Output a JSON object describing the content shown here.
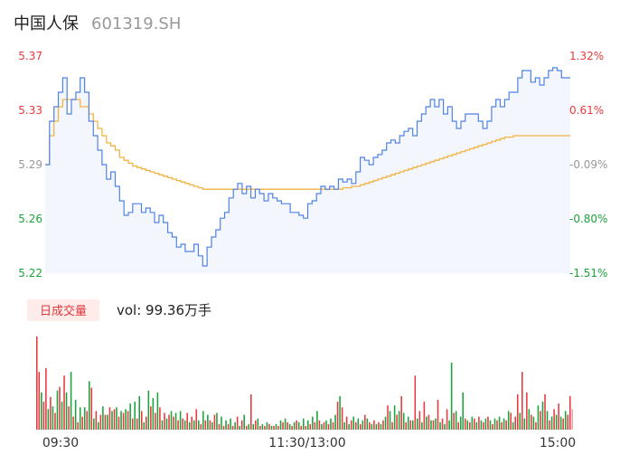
{
  "header": {
    "stock_name": "中国人保",
    "stock_code": "601319.SH"
  },
  "colors": {
    "up": "#e8383d",
    "down": "#1aa33a",
    "flat": "#999999",
    "price_line": "#4e82e6",
    "avg_line": "#f2b443",
    "area_fill": "#f3f6fc",
    "badge_bg": "#fdecea"
  },
  "volume": {
    "badge_label": "日成交量",
    "summary": "vol: 99.36万手"
  },
  "chart_data": {
    "type": "line",
    "title": "",
    "xlabel": "",
    "ylabel": "",
    "y_ticks_left": [
      "5.37",
      "5.33",
      "5.29",
      "5.26",
      "5.22"
    ],
    "y_ticks_right": [
      "1.32%",
      "0.61%",
      "-0.09%",
      "-0.80%",
      "-1.51%"
    ],
    "ylim": [
      5.22,
      5.37
    ],
    "prev_close": 5.295,
    "x_labels": [
      "09:30",
      "11:30/13:00",
      "15:00"
    ],
    "series": [
      {
        "name": "",
        "values": [
          5.295,
          5.325,
          5.335,
          5.345,
          5.355,
          5.33,
          5.34,
          5.345,
          5.355,
          5.345,
          5.325,
          5.315,
          5.305,
          5.295,
          5.285,
          5.29,
          5.28,
          5.27,
          5.26,
          5.262,
          5.268,
          5.268,
          5.262,
          5.265,
          5.262,
          5.255,
          5.26,
          5.255,
          5.248,
          5.245,
          5.238,
          5.24,
          5.235,
          5.235,
          5.24,
          5.232,
          5.225,
          5.238,
          5.245,
          5.25,
          5.258,
          5.262,
          5.272,
          5.278,
          5.282,
          5.275,
          5.28,
          5.272,
          5.278,
          5.275,
          5.27,
          5.275,
          5.272,
          5.27,
          5.268,
          5.268,
          5.262,
          5.262,
          5.26,
          5.258,
          5.268,
          5.27,
          5.275,
          5.28,
          5.278,
          5.28,
          5.278,
          5.285,
          5.283,
          5.285,
          5.282,
          5.29,
          5.3,
          5.298,
          5.295,
          5.3,
          5.302,
          5.305,
          5.31,
          5.312,
          5.31,
          5.315,
          5.318,
          5.32,
          5.315,
          5.325,
          5.33,
          5.335,
          5.34,
          5.335,
          5.34,
          5.33,
          5.335,
          5.325,
          5.32,
          5.325,
          5.33,
          5.33,
          5.33,
          5.325,
          5.32,
          5.325,
          5.335,
          5.34,
          5.335,
          5.34,
          5.345,
          5.345,
          5.355,
          5.36,
          5.36,
          5.352,
          5.355,
          5.35,
          5.355,
          5.36,
          5.362,
          5.36,
          5.355,
          5.355
        ]
      },
      {
        "name": "",
        "values": [
          5.295,
          5.315,
          5.325,
          5.335,
          5.34,
          5.34,
          5.34,
          5.34,
          5.335,
          5.335,
          5.33,
          5.325,
          5.32,
          5.315,
          5.31,
          5.308,
          5.305,
          5.3,
          5.298,
          5.296,
          5.294,
          5.293,
          5.292,
          5.291,
          5.29,
          5.289,
          5.288,
          5.287,
          5.286,
          5.285,
          5.284,
          5.283,
          5.282,
          5.281,
          5.28,
          5.279,
          5.278,
          5.278,
          5.278,
          5.278,
          5.278,
          5.278,
          5.278,
          5.278,
          5.278,
          5.278,
          5.278,
          5.278,
          5.278,
          5.278,
          5.278,
          5.278,
          5.278,
          5.278,
          5.278,
          5.278,
          5.278,
          5.278,
          5.278,
          5.278,
          5.278,
          5.278,
          5.278,
          5.278,
          5.278,
          5.278,
          5.278,
          5.278,
          5.279,
          5.279,
          5.28,
          5.28,
          5.281,
          5.282,
          5.283,
          5.284,
          5.285,
          5.286,
          5.287,
          5.288,
          5.289,
          5.29,
          5.291,
          5.292,
          5.293,
          5.294,
          5.295,
          5.296,
          5.297,
          5.298,
          5.299,
          5.3,
          5.301,
          5.302,
          5.303,
          5.304,
          5.305,
          5.306,
          5.307,
          5.308,
          5.309,
          5.31,
          5.311,
          5.312,
          5.313,
          5.314,
          5.314,
          5.315,
          5.315,
          5.315,
          5.315,
          5.315,
          5.315,
          5.315,
          5.315,
          5.315,
          5.315,
          5.315,
          5.315,
          5.315
        ]
      }
    ],
    "volume_bars": [
      {
        "v": 100,
        "c": "up"
      },
      {
        "v": 62,
        "c": "up"
      },
      {
        "v": 40,
        "c": "down"
      },
      {
        "v": 30,
        "c": "up"
      },
      {
        "v": 66,
        "c": "up"
      },
      {
        "v": 22,
        "c": "down"
      },
      {
        "v": 35,
        "c": "up"
      },
      {
        "v": 25,
        "c": "down"
      },
      {
        "v": 18,
        "c": "up"
      },
      {
        "v": 42,
        "c": "down"
      },
      {
        "v": 46,
        "c": "up"
      },
      {
        "v": 30,
        "c": "down"
      },
      {
        "v": 58,
        "c": "up"
      },
      {
        "v": 40,
        "c": "down"
      },
      {
        "v": 25,
        "c": "up"
      },
      {
        "v": 62,
        "c": "down"
      },
      {
        "v": 14,
        "c": "up"
      },
      {
        "v": 32,
        "c": "down"
      },
      {
        "v": 8,
        "c": "up"
      },
      {
        "v": 24,
        "c": "down"
      },
      {
        "v": 14,
        "c": "up"
      },
      {
        "v": 24,
        "c": "down"
      },
      {
        "v": 20,
        "c": "up"
      },
      {
        "v": 52,
        "c": "down"
      },
      {
        "v": 45,
        "c": "up"
      },
      {
        "v": 12,
        "c": "down"
      },
      {
        "v": 20,
        "c": "up"
      },
      {
        "v": 8,
        "c": "down"
      },
      {
        "v": 16,
        "c": "up"
      },
      {
        "v": 25,
        "c": "down"
      },
      {
        "v": 16,
        "c": "up"
      },
      {
        "v": 16,
        "c": "down"
      },
      {
        "v": 24,
        "c": "up"
      },
      {
        "v": 20,
        "c": "down"
      },
      {
        "v": 22,
        "c": "up"
      },
      {
        "v": 24,
        "c": "down"
      },
      {
        "v": 14,
        "c": "up"
      },
      {
        "v": 20,
        "c": "down"
      },
      {
        "v": 18,
        "c": "up"
      },
      {
        "v": 22,
        "c": "down"
      },
      {
        "v": 20,
        "c": "up"
      },
      {
        "v": 28,
        "c": "down"
      },
      {
        "v": 12,
        "c": "up"
      },
      {
        "v": 30,
        "c": "down"
      },
      {
        "v": 12,
        "c": "up"
      },
      {
        "v": 36,
        "c": "down"
      },
      {
        "v": 20,
        "c": "up"
      },
      {
        "v": 8,
        "c": "down"
      },
      {
        "v": 14,
        "c": "up"
      },
      {
        "v": 42,
        "c": "down"
      },
      {
        "v": 25,
        "c": "up"
      },
      {
        "v": 34,
        "c": "down"
      },
      {
        "v": 18,
        "c": "up"
      },
      {
        "v": 40,
        "c": "down"
      },
      {
        "v": 24,
        "c": "up"
      },
      {
        "v": 10,
        "c": "down"
      },
      {
        "v": 18,
        "c": "up"
      },
      {
        "v": 12,
        "c": "down"
      },
      {
        "v": 16,
        "c": "up"
      },
      {
        "v": 20,
        "c": "down"
      },
      {
        "v": 14,
        "c": "up"
      },
      {
        "v": 18,
        "c": "down"
      },
      {
        "v": 10,
        "c": "up"
      },
      {
        "v": 20,
        "c": "down"
      },
      {
        "v": 12,
        "c": "up"
      },
      {
        "v": 10,
        "c": "down"
      },
      {
        "v": 18,
        "c": "up"
      },
      {
        "v": 8,
        "c": "down"
      },
      {
        "v": 14,
        "c": "up"
      },
      {
        "v": 10,
        "c": "down"
      },
      {
        "v": 22,
        "c": "up"
      },
      {
        "v": 10,
        "c": "down"
      },
      {
        "v": 6,
        "c": "up"
      },
      {
        "v": 20,
        "c": "down"
      },
      {
        "v": 10,
        "c": "up"
      },
      {
        "v": 16,
        "c": "down"
      },
      {
        "v": 10,
        "c": "up"
      },
      {
        "v": 8,
        "c": "down"
      },
      {
        "v": 16,
        "c": "up"
      },
      {
        "v": 18,
        "c": "down"
      },
      {
        "v": 6,
        "c": "up"
      },
      {
        "v": 14,
        "c": "down"
      },
      {
        "v": 4,
        "c": "up"
      },
      {
        "v": 10,
        "c": "down"
      },
      {
        "v": 6,
        "c": "up"
      },
      {
        "v": 12,
        "c": "down"
      },
      {
        "v": 4,
        "c": "up"
      },
      {
        "v": 8,
        "c": "down"
      },
      {
        "v": 14,
        "c": "up"
      },
      {
        "v": 4,
        "c": "down"
      },
      {
        "v": 10,
        "c": "up"
      },
      {
        "v": 16,
        "c": "down"
      },
      {
        "v": 4,
        "c": "up"
      },
      {
        "v": 6,
        "c": "down"
      },
      {
        "v": 38,
        "c": "up"
      },
      {
        "v": 6,
        "c": "down"
      },
      {
        "v": 10,
        "c": "up"
      },
      {
        "v": 12,
        "c": "down"
      },
      {
        "v": 4,
        "c": "up"
      },
      {
        "v": 6,
        "c": "down"
      },
      {
        "v": 4,
        "c": "up"
      },
      {
        "v": 8,
        "c": "down"
      },
      {
        "v": 6,
        "c": "up"
      },
      {
        "v": 4,
        "c": "down"
      },
      {
        "v": 4,
        "c": "up"
      },
      {
        "v": 6,
        "c": "down"
      },
      {
        "v": 4,
        "c": "up"
      },
      {
        "v": 10,
        "c": "down"
      },
      {
        "v": 8,
        "c": "up"
      },
      {
        "v": 12,
        "c": "down"
      },
      {
        "v": 8,
        "c": "up"
      },
      {
        "v": 6,
        "c": "down"
      },
      {
        "v": 4,
        "c": "up"
      },
      {
        "v": 8,
        "c": "down"
      },
      {
        "v": 10,
        "c": "up"
      },
      {
        "v": 8,
        "c": "down"
      },
      {
        "v": 4,
        "c": "up"
      },
      {
        "v": 12,
        "c": "down"
      },
      {
        "v": 4,
        "c": "up"
      },
      {
        "v": 10,
        "c": "down"
      },
      {
        "v": 6,
        "c": "up"
      },
      {
        "v": 14,
        "c": "down"
      },
      {
        "v": 8,
        "c": "up"
      },
      {
        "v": 20,
        "c": "down"
      },
      {
        "v": 10,
        "c": "up"
      },
      {
        "v": 6,
        "c": "down"
      },
      {
        "v": 8,
        "c": "up"
      },
      {
        "v": 10,
        "c": "down"
      },
      {
        "v": 6,
        "c": "up"
      },
      {
        "v": 12,
        "c": "down"
      },
      {
        "v": 8,
        "c": "up"
      },
      {
        "v": 16,
        "c": "down"
      },
      {
        "v": 30,
        "c": "up"
      },
      {
        "v": 36,
        "c": "down"
      },
      {
        "v": 24,
        "c": "up"
      },
      {
        "v": 8,
        "c": "down"
      },
      {
        "v": 14,
        "c": "up"
      },
      {
        "v": 6,
        "c": "down"
      },
      {
        "v": 10,
        "c": "up"
      },
      {
        "v": 14,
        "c": "down"
      },
      {
        "v": 8,
        "c": "up"
      },
      {
        "v": 12,
        "c": "down"
      },
      {
        "v": 6,
        "c": "up"
      },
      {
        "v": 10,
        "c": "down"
      },
      {
        "v": 16,
        "c": "up"
      },
      {
        "v": 12,
        "c": "down"
      },
      {
        "v": 8,
        "c": "up"
      },
      {
        "v": 6,
        "c": "down"
      },
      {
        "v": 10,
        "c": "up"
      },
      {
        "v": 6,
        "c": "down"
      },
      {
        "v": 8,
        "c": "up"
      },
      {
        "v": 6,
        "c": "down"
      },
      {
        "v": 10,
        "c": "up"
      },
      {
        "v": 14,
        "c": "down"
      },
      {
        "v": 26,
        "c": "up"
      },
      {
        "v": 20,
        "c": "down"
      },
      {
        "v": 8,
        "c": "up"
      },
      {
        "v": 26,
        "c": "down"
      },
      {
        "v": 16,
        "c": "up"
      },
      {
        "v": 20,
        "c": "down"
      },
      {
        "v": 36,
        "c": "up"
      },
      {
        "v": 18,
        "c": "down"
      },
      {
        "v": 8,
        "c": "up"
      },
      {
        "v": 14,
        "c": "down"
      },
      {
        "v": 10,
        "c": "up"
      },
      {
        "v": 10,
        "c": "down"
      },
      {
        "v": 58,
        "c": "up"
      },
      {
        "v": 12,
        "c": "down"
      },
      {
        "v": 20,
        "c": "up"
      },
      {
        "v": 8,
        "c": "down"
      },
      {
        "v": 30,
        "c": "up"
      },
      {
        "v": 14,
        "c": "down"
      },
      {
        "v": 16,
        "c": "up"
      },
      {
        "v": 10,
        "c": "down"
      },
      {
        "v": 10,
        "c": "up"
      },
      {
        "v": 12,
        "c": "down"
      },
      {
        "v": 32,
        "c": "up"
      },
      {
        "v": 8,
        "c": "down"
      },
      {
        "v": 12,
        "c": "up"
      },
      {
        "v": 6,
        "c": "down"
      },
      {
        "v": 22,
        "c": "up"
      },
      {
        "v": 10,
        "c": "down"
      },
      {
        "v": 72,
        "c": "down"
      },
      {
        "v": 18,
        "c": "up"
      },
      {
        "v": 20,
        "c": "down"
      },
      {
        "v": 8,
        "c": "up"
      },
      {
        "v": 14,
        "c": "down"
      },
      {
        "v": 40,
        "c": "down"
      },
      {
        "v": 12,
        "c": "up"
      },
      {
        "v": 10,
        "c": "down"
      },
      {
        "v": 8,
        "c": "up"
      },
      {
        "v": 14,
        "c": "down"
      },
      {
        "v": 12,
        "c": "up"
      },
      {
        "v": 8,
        "c": "down"
      },
      {
        "v": 14,
        "c": "up"
      },
      {
        "v": 10,
        "c": "down"
      },
      {
        "v": 8,
        "c": "up"
      },
      {
        "v": 12,
        "c": "down"
      },
      {
        "v": 14,
        "c": "up"
      },
      {
        "v": 10,
        "c": "down"
      },
      {
        "v": 6,
        "c": "up"
      },
      {
        "v": 12,
        "c": "down"
      },
      {
        "v": 10,
        "c": "up"
      },
      {
        "v": 14,
        "c": "down"
      },
      {
        "v": 8,
        "c": "up"
      },
      {
        "v": 12,
        "c": "down"
      },
      {
        "v": 10,
        "c": "up"
      },
      {
        "v": 20,
        "c": "down"
      },
      {
        "v": 18,
        "c": "up"
      },
      {
        "v": 8,
        "c": "down"
      },
      {
        "v": 14,
        "c": "up"
      },
      {
        "v": 38,
        "c": "up"
      },
      {
        "v": 18,
        "c": "down"
      },
      {
        "v": 62,
        "c": "up"
      },
      {
        "v": 12,
        "c": "down"
      },
      {
        "v": 40,
        "c": "up"
      },
      {
        "v": 22,
        "c": "down"
      },
      {
        "v": 16,
        "c": "up"
      },
      {
        "v": 14,
        "c": "down"
      },
      {
        "v": 8,
        "c": "up"
      },
      {
        "v": 26,
        "c": "down"
      },
      {
        "v": 20,
        "c": "up"
      },
      {
        "v": 30,
        "c": "down"
      },
      {
        "v": 38,
        "c": "up"
      },
      {
        "v": 20,
        "c": "down"
      },
      {
        "v": 10,
        "c": "up"
      },
      {
        "v": 14,
        "c": "down"
      },
      {
        "v": 22,
        "c": "up"
      },
      {
        "v": 16,
        "c": "down"
      },
      {
        "v": 28,
        "c": "up"
      },
      {
        "v": 14,
        "c": "down"
      },
      {
        "v": 12,
        "c": "up"
      },
      {
        "v": 20,
        "c": "down"
      },
      {
        "v": 16,
        "c": "up"
      },
      {
        "v": 36,
        "c": "up"
      },
      {
        "v": 22,
        "c": "flat"
      }
    ]
  }
}
